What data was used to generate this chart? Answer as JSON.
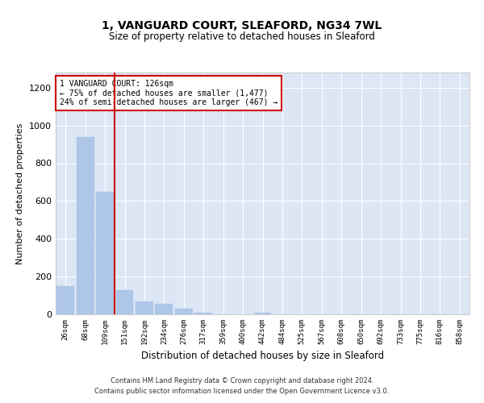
{
  "title1": "1, VANGUARD COURT, SLEAFORD, NG34 7WL",
  "title2": "Size of property relative to detached houses in Sleaford",
  "xlabel": "Distribution of detached houses by size in Sleaford",
  "ylabel": "Number of detached properties",
  "annotation_line1": "1 VANGUARD COURT: 126sqm",
  "annotation_line2": "← 75% of detached houses are smaller (1,477)",
  "annotation_line3": "24% of semi-detached houses are larger (467) →",
  "bar_color": "#aec6e8",
  "vline_color": "#cc0000",
  "footer1": "Contains HM Land Registry data © Crown copyright and database right 2024.",
  "footer2": "Contains public sector information licensed under the Open Government Licence v3.0.",
  "bins": [
    "26sqm",
    "68sqm",
    "109sqm",
    "151sqm",
    "192sqm",
    "234sqm",
    "276sqm",
    "317sqm",
    "359sqm",
    "400sqm",
    "442sqm",
    "484sqm",
    "525sqm",
    "567sqm",
    "608sqm",
    "650sqm",
    "692sqm",
    "733sqm",
    "775sqm",
    "816sqm",
    "858sqm"
  ],
  "values": [
    150,
    940,
    650,
    130,
    70,
    55,
    30,
    10,
    0,
    0,
    10,
    0,
    0,
    0,
    0,
    0,
    0,
    0,
    0,
    0,
    0
  ],
  "vline_position": 2.5,
  "ylim": [
    0,
    1280
  ],
  "yticks": [
    0,
    200,
    400,
    600,
    800,
    1000,
    1200
  ],
  "background_color": "#dce6f5",
  "grid_color": "#ffffff",
  "fig_bg": "#ffffff"
}
